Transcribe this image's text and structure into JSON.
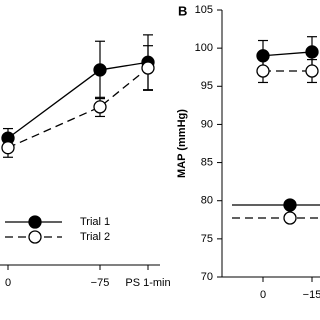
{
  "chart_data": [
    {
      "type": "line",
      "categories": [
        "0",
        "−75",
        "PS 1-min"
      ],
      "ylim": [
        60,
        100
      ],
      "series": [
        {
          "name": "Trial 1",
          "color": "#000000",
          "marker": "filled",
          "line": "solid",
          "values": [
            79.9,
            90.6,
            91.8
          ],
          "errors": [
            1.5,
            4.5,
            4.3
          ]
        },
        {
          "name": "Trial 2",
          "color": "#000000",
          "marker": "open",
          "line": "dashed",
          "values": [
            78.4,
            84.8,
            90.9
          ],
          "errors": [
            1.5,
            1.5,
            3.5
          ]
        }
      ]
    },
    {
      "type": "line",
      "title": "B",
      "y_label": "MAP (mmHg)",
      "categories": [
        "0",
        "−15"
      ],
      "ylim": [
        70,
        105
      ],
      "yticks": [
        70,
        75,
        80,
        85,
        90,
        95,
        100,
        105
      ],
      "series": [
        {
          "color": "#000000",
          "marker": "filled",
          "line": "solid",
          "values": [
            99,
            99.5
          ],
          "errors": [
            2,
            2
          ]
        },
        {
          "color": "#000000",
          "marker": "open",
          "line": "dashed",
          "values": [
            97,
            97
          ],
          "errors": [
            1.5,
            1.5
          ]
        }
      ]
    }
  ]
}
